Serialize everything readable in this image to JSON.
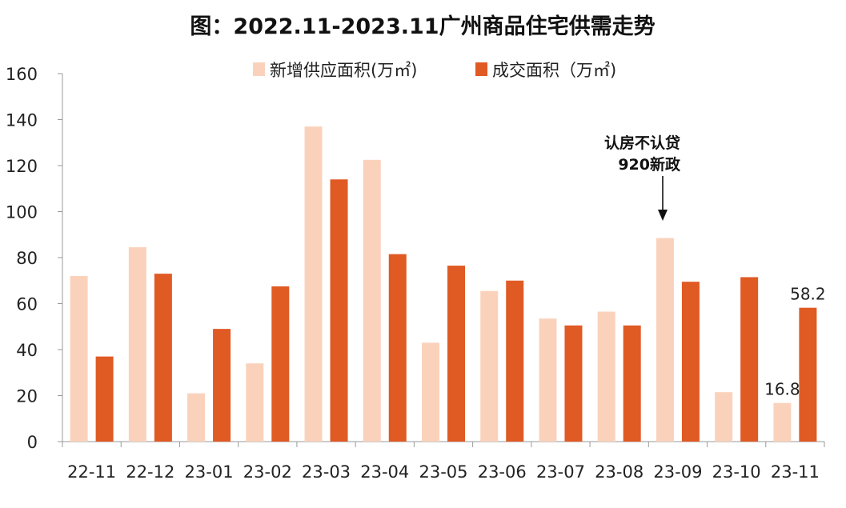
{
  "chart_data": {
    "type": "bar",
    "title": "图：2022.11-2023.11广州商品住宅供需走势",
    "categories": [
      "22-11",
      "22-12",
      "23-01",
      "23-02",
      "23-03",
      "23-04",
      "23-05",
      "23-06",
      "23-07",
      "23-08",
      "23-09",
      "23-10",
      "23-11"
    ],
    "series": [
      {
        "name": "新增供应面积(万㎡)",
        "color": "#FAD2BC",
        "values": [
          72,
          84.5,
          21,
          34,
          137,
          122.5,
          43,
          65.5,
          53.5,
          56.5,
          88.5,
          21.5,
          16.8
        ]
      },
      {
        "name": "成交面积（万㎡)",
        "color": "#E05A24",
        "values": [
          37,
          73,
          49,
          67.5,
          114,
          81.5,
          76.5,
          70,
          50.5,
          50.5,
          69.5,
          71.5,
          58.2
        ]
      }
    ],
    "ylim": [
      0,
      160
    ],
    "yticks": [
      "0",
      "20",
      "40",
      "60",
      "80",
      "100",
      "120",
      "140",
      "160"
    ],
    "legend_position": "top",
    "grid": false,
    "annotation": {
      "lines": [
        "认房不认贷",
        "920新政"
      ],
      "category": "23-09"
    },
    "data_labels": [
      {
        "text": "58.2",
        "category": "23-11",
        "series": 1
      },
      {
        "text": "16.8",
        "category": "23-11",
        "series": 0
      }
    ]
  }
}
